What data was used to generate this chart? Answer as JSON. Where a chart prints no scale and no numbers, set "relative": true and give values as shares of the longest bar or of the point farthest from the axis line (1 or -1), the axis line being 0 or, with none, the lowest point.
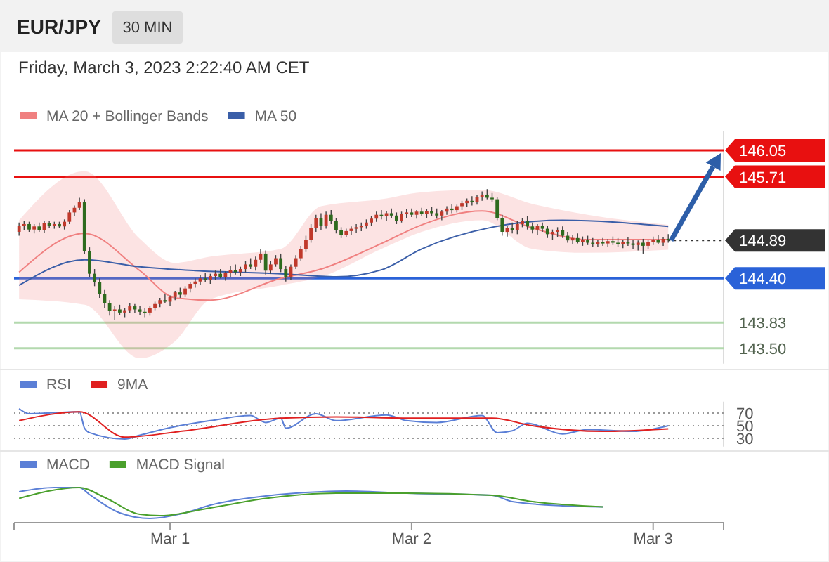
{
  "chart_data": [
    {
      "type": "candlestick",
      "title": "EUR/JPY",
      "subtitle": "30 MIN",
      "annotations": [
        "Friday, March 3, 2023 2:22:40 AM CET"
      ],
      "x": [
        "2023-02-28T09:00",
        "2023-02-28T09:30",
        "2023-02-28T10:00",
        "2023-02-28T10:30",
        "2023-02-28T11:00",
        "2023-02-28T11:30",
        "2023-02-28T12:00",
        "2023-02-28T12:30",
        "2023-02-28T13:00",
        "2023-02-28T13:30",
        "2023-02-28T14:00",
        "2023-02-28T14:30",
        "2023-02-28T15:00",
        "2023-02-28T15:30",
        "2023-02-28T16:00",
        "2023-02-28T16:30",
        "2023-02-28T17:00",
        "2023-02-28T17:30",
        "2023-02-28T18:00",
        "2023-02-28T18:30",
        "2023-02-28T19:00",
        "2023-02-28T19:30",
        "2023-02-28T20:00",
        "2023-02-28T20:30",
        "2023-02-28T21:00",
        "2023-02-28T21:30",
        "2023-02-28T22:00",
        "2023-02-28T22:30",
        "2023-02-28T23:00",
        "2023-02-28T23:30",
        "2023-03-01T00:00",
        "2023-03-01T00:30",
        "2023-03-01T01:00",
        "2023-03-01T01:30",
        "2023-03-01T02:00",
        "2023-03-01T02:30",
        "2023-03-01T03:00",
        "2023-03-01T03:30",
        "2023-03-01T04:00",
        "2023-03-01T04:30",
        "2023-03-01T05:00",
        "2023-03-01T05:30",
        "2023-03-01T06:00",
        "2023-03-01T06:30",
        "2023-03-01T07:00",
        "2023-03-01T07:30",
        "2023-03-01T08:00",
        "2023-03-01T08:30",
        "2023-03-01T09:00",
        "2023-03-01T09:30",
        "2023-03-01T10:00",
        "2023-03-01T10:30",
        "2023-03-01T11:00",
        "2023-03-01T11:30",
        "2023-03-01T12:00",
        "2023-03-01T12:30",
        "2023-03-01T13:00",
        "2023-03-01T13:30",
        "2023-03-01T14:00",
        "2023-03-01T14:30",
        "2023-03-01T15:00",
        "2023-03-01T15:30",
        "2023-03-01T16:00",
        "2023-03-01T16:30",
        "2023-03-01T17:00",
        "2023-03-01T17:30",
        "2023-03-01T18:00",
        "2023-03-01T18:30",
        "2023-03-01T19:00",
        "2023-03-01T19:30",
        "2023-03-01T20:00",
        "2023-03-01T20:30",
        "2023-03-01T21:00",
        "2023-03-01T21:30",
        "2023-03-01T22:00",
        "2023-03-01T22:30",
        "2023-03-01T23:00",
        "2023-03-01T23:30",
        "2023-03-02T00:00",
        "2023-03-02T00:30",
        "2023-03-02T01:00",
        "2023-03-02T01:30",
        "2023-03-02T02:00",
        "2023-03-02T02:30",
        "2023-03-02T03:00",
        "2023-03-02T03:30",
        "2023-03-02T04:00",
        "2023-03-02T04:30",
        "2023-03-02T05:00",
        "2023-03-02T05:30",
        "2023-03-02T06:00",
        "2023-03-02T06:30",
        "2023-03-02T07:00",
        "2023-03-02T07:30",
        "2023-03-02T08:00",
        "2023-03-02T08:30",
        "2023-03-02T09:00",
        "2023-03-02T09:30",
        "2023-03-02T10:00",
        "2023-03-02T10:30",
        "2023-03-02T11:00",
        "2023-03-02T11:30",
        "2023-03-02T12:00",
        "2023-03-02T12:30",
        "2023-03-02T13:00",
        "2023-03-02T13:30",
        "2023-03-02T14:00",
        "2023-03-02T14:30",
        "2023-03-02T15:00",
        "2023-03-02T15:30",
        "2023-03-02T16:00",
        "2023-03-02T16:30",
        "2023-03-02T17:00",
        "2023-03-02T17:30",
        "2023-03-02T18:00",
        "2023-03-02T18:30",
        "2023-03-02T19:00",
        "2023-03-02T19:30",
        "2023-03-02T20:00",
        "2023-03-02T20:30",
        "2023-03-02T21:00",
        "2023-03-02T21:30",
        "2023-03-02T22:00",
        "2023-03-02T22:30",
        "2023-03-02T23:00",
        "2023-03-02T23:30",
        "2023-03-03T00:00",
        "2023-03-03T00:30",
        "2023-03-03T01:00",
        "2023-03-03T01:30"
      ],
      "ohlc": [
        [
          145.0,
          145.12,
          144.95,
          145.08
        ],
        [
          145.08,
          145.14,
          145.02,
          145.1
        ],
        [
          145.1,
          145.13,
          145.0,
          145.03
        ],
        [
          145.03,
          145.1,
          144.98,
          145.07
        ],
        [
          145.07,
          145.12,
          145.0,
          145.02
        ],
        [
          145.02,
          145.14,
          144.99,
          145.11
        ],
        [
          145.11,
          145.14,
          145.05,
          145.08
        ],
        [
          145.08,
          145.13,
          145.04,
          145.1
        ],
        [
          145.1,
          145.13,
          145.05,
          145.07
        ],
        [
          145.07,
          145.16,
          145.03,
          145.13
        ],
        [
          145.13,
          145.28,
          145.1,
          145.25
        ],
        [
          145.25,
          145.34,
          145.2,
          145.31
        ],
        [
          145.31,
          145.44,
          145.28,
          145.38
        ],
        [
          145.38,
          145.42,
          144.72,
          144.75
        ],
        [
          144.75,
          144.8,
          144.42,
          144.46
        ],
        [
          144.46,
          144.52,
          144.3,
          144.35
        ],
        [
          144.35,
          144.4,
          144.15,
          144.2
        ],
        [
          144.2,
          144.25,
          144.02,
          144.08
        ],
        [
          144.08,
          144.12,
          143.92,
          143.98
        ],
        [
          143.98,
          144.05,
          143.86,
          144.0
        ],
        [
          144.0,
          144.06,
          143.93,
          143.96
        ],
        [
          143.96,
          144.02,
          143.9,
          143.99
        ],
        [
          143.99,
          144.08,
          143.95,
          144.04
        ],
        [
          144.04,
          144.07,
          143.96,
          144.0
        ],
        [
          144.0,
          144.04,
          143.93,
          143.97
        ],
        [
          143.97,
          144.02,
          143.9,
          143.96
        ],
        [
          143.96,
          144.05,
          143.92,
          144.02
        ],
        [
          144.02,
          144.1,
          143.99,
          144.07
        ],
        [
          144.07,
          144.15,
          144.03,
          144.12
        ],
        [
          144.12,
          144.2,
          144.08,
          144.1
        ],
        [
          144.1,
          144.18,
          144.05,
          144.16
        ],
        [
          144.16,
          144.24,
          144.12,
          144.22
        ],
        [
          144.22,
          144.28,
          144.15,
          144.19
        ],
        [
          144.19,
          144.3,
          144.16,
          144.27
        ],
        [
          144.27,
          144.35,
          144.22,
          144.33
        ],
        [
          144.33,
          144.4,
          144.28,
          144.36
        ],
        [
          144.36,
          144.44,
          144.32,
          144.4
        ],
        [
          144.4,
          144.47,
          144.35,
          144.38
        ],
        [
          144.38,
          144.46,
          144.33,
          144.43
        ],
        [
          144.43,
          144.5,
          144.38,
          144.46
        ],
        [
          144.46,
          144.52,
          144.4,
          144.42
        ],
        [
          144.42,
          144.49,
          144.37,
          144.47
        ],
        [
          144.47,
          144.56,
          144.42,
          144.51
        ],
        [
          144.51,
          144.58,
          144.45,
          144.48
        ],
        [
          144.48,
          144.55,
          144.43,
          144.52
        ],
        [
          144.52,
          144.62,
          144.48,
          144.58
        ],
        [
          144.58,
          144.66,
          144.52,
          144.55
        ],
        [
          144.55,
          144.68,
          144.5,
          144.64
        ],
        [
          144.64,
          144.78,
          144.6,
          144.72
        ],
        [
          144.72,
          144.76,
          144.45,
          144.5
        ],
        [
          144.5,
          144.62,
          144.46,
          144.58
        ],
        [
          144.58,
          144.7,
          144.55,
          144.66
        ],
        [
          144.66,
          144.72,
          144.48,
          144.52
        ],
        [
          144.52,
          144.56,
          144.36,
          144.42
        ],
        [
          144.42,
          144.58,
          144.38,
          144.55
        ],
        [
          144.55,
          144.7,
          144.52,
          144.66
        ],
        [
          144.66,
          144.82,
          144.62,
          144.78
        ],
        [
          144.78,
          144.95,
          144.74,
          144.9
        ],
        [
          144.9,
          145.1,
          144.86,
          145.05
        ],
        [
          145.05,
          145.22,
          145.0,
          145.18
        ],
        [
          145.18,
          145.24,
          145.02,
          145.08
        ],
        [
          145.08,
          145.26,
          145.04,
          145.22
        ],
        [
          145.22,
          145.28,
          145.1,
          145.14
        ],
        [
          145.14,
          145.18,
          144.98,
          145.02
        ],
        [
          145.02,
          145.06,
          144.92,
          144.96
        ],
        [
          144.96,
          145.04,
          144.93,
          145.01
        ],
        [
          145.01,
          145.07,
          144.96,
          145.04
        ],
        [
          145.04,
          145.1,
          144.99,
          145.06
        ],
        [
          145.06,
          145.12,
          145.01,
          145.08
        ],
        [
          145.08,
          145.16,
          145.04,
          145.12
        ],
        [
          145.12,
          145.2,
          145.08,
          145.17
        ],
        [
          145.17,
          145.26,
          145.13,
          145.22
        ],
        [
          145.22,
          145.28,
          145.16,
          145.2
        ],
        [
          145.2,
          145.27,
          145.14,
          145.24
        ],
        [
          145.24,
          145.3,
          145.18,
          145.21
        ],
        [
          145.21,
          145.25,
          145.1,
          145.14
        ],
        [
          145.14,
          145.26,
          145.12,
          145.23
        ],
        [
          145.23,
          145.29,
          145.18,
          145.25
        ],
        [
          145.25,
          145.3,
          145.19,
          145.22
        ],
        [
          145.22,
          145.28,
          145.17,
          145.26
        ],
        [
          145.26,
          145.31,
          145.2,
          145.23
        ],
        [
          145.23,
          145.29,
          145.18,
          145.27
        ],
        [
          145.27,
          145.32,
          145.2,
          145.24
        ],
        [
          145.24,
          145.3,
          145.17,
          145.21
        ],
        [
          145.21,
          145.28,
          145.15,
          145.26
        ],
        [
          145.26,
          145.33,
          145.22,
          145.3
        ],
        [
          145.3,
          145.36,
          145.24,
          145.28
        ],
        [
          145.28,
          145.35,
          145.25,
          145.33
        ],
        [
          145.33,
          145.4,
          145.28,
          145.37
        ],
        [
          145.37,
          145.43,
          145.32,
          145.4
        ],
        [
          145.4,
          145.46,
          145.34,
          145.38
        ],
        [
          145.38,
          145.48,
          145.35,
          145.45
        ],
        [
          145.45,
          145.52,
          145.4,
          145.48
        ],
        [
          145.48,
          145.55,
          145.42,
          145.44
        ],
        [
          145.44,
          145.5,
          145.38,
          145.42
        ],
        [
          145.42,
          145.45,
          145.15,
          145.18
        ],
        [
          145.18,
          145.22,
          144.95,
          145.0
        ],
        [
          145.0,
          145.08,
          144.94,
          145.05
        ],
        [
          145.05,
          145.12,
          144.98,
          145.02
        ],
        [
          145.02,
          145.14,
          144.97,
          145.1
        ],
        [
          145.1,
          145.18,
          145.06,
          145.14
        ],
        [
          145.14,
          145.2,
          145.03,
          145.07
        ],
        [
          145.07,
          145.12,
          144.98,
          145.03
        ],
        [
          145.03,
          145.1,
          144.96,
          145.08
        ],
        [
          145.08,
          145.12,
          145.0,
          145.04
        ],
        [
          145.04,
          145.08,
          144.92,
          144.97
        ],
        [
          144.97,
          145.03,
          144.9,
          145.0
        ],
        [
          145.0,
          145.06,
          144.93,
          145.02
        ],
        [
          145.02,
          145.07,
          144.92,
          144.95
        ],
        [
          144.95,
          145.0,
          144.86,
          144.89
        ],
        [
          144.89,
          144.96,
          144.84,
          144.92
        ],
        [
          144.92,
          144.98,
          144.85,
          144.87
        ],
        [
          144.87,
          144.94,
          144.82,
          144.9
        ],
        [
          144.9,
          144.95,
          144.83,
          144.86
        ],
        [
          144.86,
          144.92,
          144.8,
          144.84
        ],
        [
          144.84,
          144.9,
          144.8,
          144.87
        ],
        [
          144.87,
          144.92,
          144.82,
          144.85
        ],
        [
          144.85,
          144.91,
          144.8,
          144.88
        ],
        [
          144.88,
          144.94,
          144.83,
          144.86
        ],
        [
          144.86,
          144.92,
          144.81,
          144.84
        ],
        [
          144.84,
          144.9,
          144.79,
          144.87
        ],
        [
          144.87,
          144.93,
          144.82,
          144.85
        ],
        [
          144.85,
          144.9,
          144.78,
          144.83
        ],
        [
          144.83,
          144.89,
          144.76,
          144.86
        ],
        [
          144.86,
          144.91,
          144.72,
          144.82
        ],
        [
          144.82,
          144.9,
          144.78,
          144.87
        ],
        [
          144.87,
          144.94,
          144.83,
          144.9
        ],
        [
          144.9,
          144.96,
          144.84,
          144.86
        ],
        [
          144.86,
          144.93,
          144.82,
          144.91
        ],
        [
          144.91,
          144.97,
          144.86,
          144.89
        ]
      ],
      "series": [
        {
          "name": "MA 20 + Bollinger Bands",
          "type": "line",
          "color": "#f08080",
          "x": [
            "2023-02-28T09:00",
            "2023-02-28T15:30",
            "2023-02-28T21:00",
            "2023-03-01T00:30",
            "2023-03-01T04:00",
            "2023-03-01T11:00",
            "2023-03-01T15:00",
            "2023-03-01T21:00",
            "2023-03-02T01:00",
            "2023-03-02T07:00",
            "2023-03-02T12:00",
            "2023-03-02T17:30",
            "2023-03-03T01:30"
          ],
          "values": [
            144.48,
            144.98,
            144.5,
            144.15,
            144.12,
            144.4,
            144.52,
            144.85,
            145.09,
            145.27,
            145.05,
            144.9,
            144.9
          ],
          "lower": [
            144.13,
            144.06,
            143.37,
            143.59,
            144.13,
            144.31,
            144.42,
            144.78,
            145.0,
            145.15,
            144.78,
            144.73,
            144.77
          ],
          "upper": [
            145.15,
            145.78,
            144.91,
            144.6,
            144.68,
            144.78,
            145.33,
            145.42,
            145.51,
            145.54,
            145.36,
            145.22,
            145.09
          ]
        },
        {
          "name": "MA 50",
          "type": "line",
          "color": "#3a5ea8",
          "x": [
            "2023-02-28T09:00",
            "2023-02-28T15:30",
            "2023-02-28T21:00",
            "2023-03-01T02:30",
            "2023-03-01T11:00",
            "2023-03-01T16:30",
            "2023-03-01T21:00",
            "2023-03-02T01:00",
            "2023-03-02T08:00",
            "2023-03-02T15:00",
            "2023-03-03T01:30"
          ],
          "values": [
            144.31,
            144.64,
            144.55,
            144.5,
            144.46,
            144.42,
            144.51,
            144.78,
            145.06,
            145.15,
            145.07
          ]
        }
      ],
      "ref_lines": [
        {
          "axis": "y",
          "value": 146.05,
          "label": "146.05",
          "color": "#e81010"
        },
        {
          "axis": "y",
          "value": 145.71,
          "label": "145.71",
          "color": "#e81010"
        },
        {
          "axis": "y",
          "value": 144.89,
          "label": "144.89",
          "color": "#333333",
          "line_style": "dotted"
        },
        {
          "axis": "y",
          "value": 144.4,
          "label": "144.40",
          "color": "#2a62d8"
        },
        {
          "axis": "y",
          "value": 143.83,
          "label": "143.83",
          "color": "#b3d9ae"
        },
        {
          "axis": "y",
          "value": 143.5,
          "label": "143.50",
          "color": "#b3d9ae"
        }
      ],
      "xlim": [
        "2023-02-28T08:30",
        "2023-03-03T07:00"
      ],
      "ylim": [
        143.3,
        146.3
      ],
      "legend": "top left",
      "tick_labels": false
    },
    {
      "type": "line",
      "xlim": [
        "2023-02-28T08:30",
        "2023-03-03T07:00"
      ],
      "ylim": [
        17,
        88
      ],
      "yticks": [
        70,
        50,
        30
      ],
      "grid": "y",
      "legend": "top left",
      "tick_labels": "y",
      "series": [
        {
          "name": "RSI",
          "color": "#5b7fd6",
          "x": [
            "2023-02-28T09:00",
            "2023-02-28T10:00",
            "2023-02-28T15:00",
            "2023-02-28T15:30",
            "2023-02-28T16:00",
            "2023-02-28T19:30",
            "2023-02-28T21:00",
            "2023-03-01T00:00",
            "2023-03-01T04:00",
            "2023-03-01T08:00",
            "2023-03-01T09:30",
            "2023-03-01T11:00",
            "2023-03-01T11:30",
            "2023-03-01T14:30",
            "2023-03-01T16:30",
            "2023-03-01T21:30",
            "2023-03-01T23:30",
            "2023-03-02T02:30",
            "2023-03-02T07:00",
            "2023-03-02T08:30",
            "2023-03-02T10:00",
            "2023-03-02T11:30",
            "2023-03-02T15:00",
            "2023-03-02T17:30",
            "2023-03-02T22:00",
            "2023-03-03T01:30"
          ],
          "values": [
            77,
            69,
            72,
            46,
            39,
            29,
            35,
            47,
            58,
            66,
            55,
            62,
            46,
            69,
            58,
            67,
            58,
            55,
            66,
            39,
            42,
            54,
            37,
            44,
            41,
            50
          ]
        },
        {
          "name": "9MA",
          "color": "#e02020",
          "x": [
            "2023-02-28T09:00",
            "2023-02-28T15:00",
            "2023-02-28T19:30",
            "2023-03-01T01:00",
            "2023-03-01T11:00",
            "2023-03-01T16:30",
            "2023-03-01T23:30",
            "2023-03-02T08:00",
            "2023-03-02T12:00",
            "2023-03-02T19:00",
            "2023-03-03T01:30"
          ],
          "values": [
            58,
            72,
            32,
            41,
            62,
            64,
            62,
            62,
            50,
            41,
            45
          ]
        }
      ]
    },
    {
      "type": "line",
      "relative": true,
      "xlim": [
        "2023-02-28T08:30",
        "2023-03-03T07:00"
      ],
      "xticks": [
        {
          "value": "2023-03-01",
          "label": "Mar 1"
        },
        {
          "value": "2023-03-02",
          "label": "Mar 2"
        },
        {
          "value": "2023-03-03",
          "label": "Mar 3"
        }
      ],
      "legend": "top left",
      "tick_labels": "x",
      "series": [
        {
          "name": "MACD",
          "color": "#5b7fd6",
          "x": [
            "2023-02-28T09:00",
            "2023-02-28T12:30",
            "2023-02-28T15:00",
            "2023-02-28T16:00",
            "2023-02-28T19:00",
            "2023-02-28T22:00",
            "2023-03-01T01:30",
            "2023-03-01T04:00",
            "2023-03-01T09:30",
            "2023-03-01T15:00",
            "2023-03-01T17:30",
            "2023-03-01T23:30",
            "2023-03-02T08:00",
            "2023-03-02T10:00",
            "2023-03-02T15:00",
            "2023-03-02T19:00"
          ],
          "values": [
            0.88,
            1,
            1,
            0.8,
            0.28,
            0.12,
            0.28,
            0.5,
            0.76,
            0.88,
            0.9,
            0.84,
            0.78,
            0.6,
            0.48,
            0.45
          ]
        },
        {
          "name": "MACD Signal",
          "color": "#4aa02c",
          "x": [
            "2023-02-28T09:00",
            "2023-02-28T15:00",
            "2023-02-28T17:30",
            "2023-02-28T21:00",
            "2023-02-28T23:00",
            "2023-03-01T04:00",
            "2023-03-01T09:30",
            "2023-03-01T16:30",
            "2023-03-01T23:30",
            "2023-03-02T08:00",
            "2023-03-02T12:00",
            "2023-03-02T19:00"
          ],
          "values": [
            0.69,
            1,
            0.72,
            0.24,
            0.2,
            0.42,
            0.69,
            0.84,
            0.84,
            0.78,
            0.6,
            0.45
          ]
        }
      ]
    }
  ]
}
